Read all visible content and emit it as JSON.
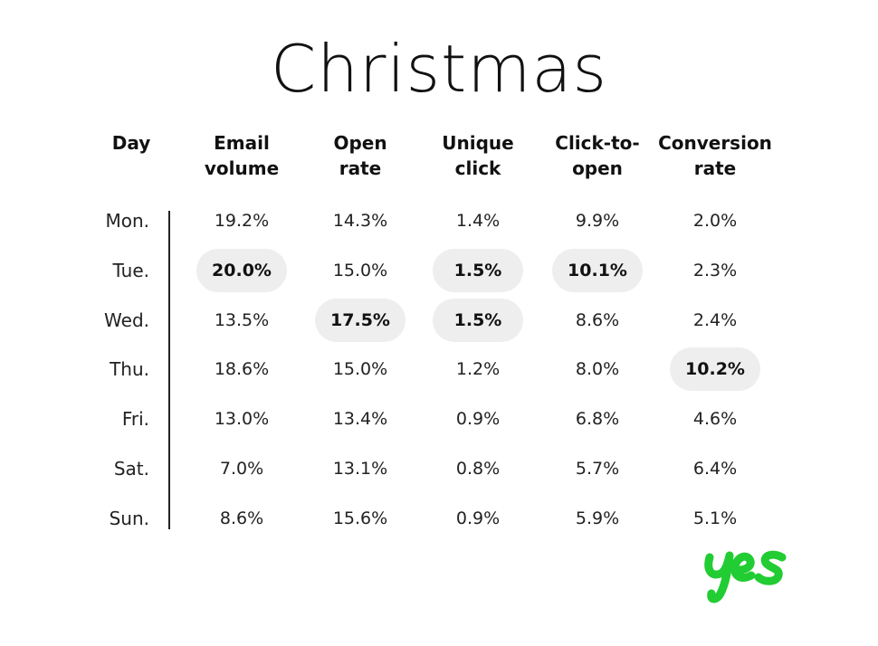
{
  "chart_data": {
    "type": "table",
    "title": "Christmas",
    "columns": [
      {
        "key": "day",
        "label": [
          "Day"
        ]
      },
      {
        "key": "email_volume",
        "label": [
          "Email",
          "volume"
        ]
      },
      {
        "key": "open_rate",
        "label": [
          "Open",
          "rate"
        ]
      },
      {
        "key": "unique_click",
        "label": [
          "Unique",
          "click"
        ]
      },
      {
        "key": "click_to_open",
        "label": [
          "Click-to-",
          "open"
        ]
      },
      {
        "key": "conversion_rate",
        "label": [
          "Conversion",
          "rate"
        ]
      }
    ],
    "rows": [
      {
        "day": "Mon.",
        "values": [
          "19.2%",
          "14.3%",
          "1.4%",
          "9.9%",
          "2.0%"
        ],
        "highlight": [
          false,
          false,
          false,
          false,
          false
        ]
      },
      {
        "day": "Tue.",
        "values": [
          "20.0%",
          "15.0%",
          "1.5%",
          "10.1%",
          "2.3%"
        ],
        "highlight": [
          true,
          false,
          true,
          true,
          false
        ]
      },
      {
        "day": "Wed.",
        "values": [
          "13.5%",
          "17.5%",
          "1.5%",
          "8.6%",
          "2.4%"
        ],
        "highlight": [
          false,
          true,
          true,
          false,
          false
        ]
      },
      {
        "day": "Thu.",
        "values": [
          "18.6%",
          "15.0%",
          "1.2%",
          "8.0%",
          "10.2%"
        ],
        "highlight": [
          false,
          false,
          false,
          false,
          true
        ]
      },
      {
        "day": "Fri.",
        "values": [
          "13.0%",
          "13.4%",
          "0.9%",
          "6.8%",
          "4.6%"
        ],
        "highlight": [
          false,
          false,
          false,
          false,
          false
        ]
      },
      {
        "day": "Sat.",
        "values": [
          "7.0%",
          "13.1%",
          "0.8%",
          "5.7%",
          "6.4%"
        ],
        "highlight": [
          false,
          false,
          false,
          false,
          false
        ]
      },
      {
        "day": "Sun.",
        "values": [
          "8.6%",
          "15.6%",
          "0.9%",
          "5.9%",
          "5.1%"
        ],
        "highlight": [
          false,
          false,
          false,
          false,
          false
        ]
      }
    ],
    "highlight_color": "#eeeeee"
  },
  "logo": {
    "text": "yes",
    "color": "#22cc33",
    "icon": "yes-logo-icon"
  }
}
